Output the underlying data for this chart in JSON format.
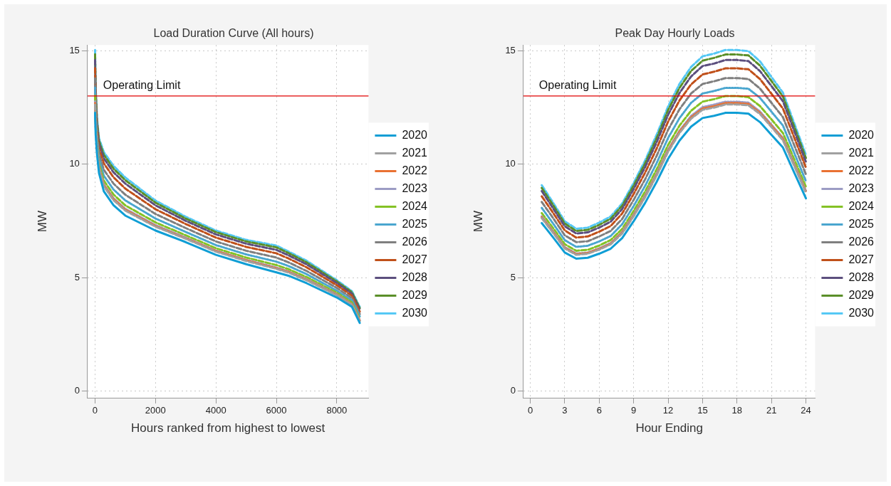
{
  "chart_data": [
    {
      "type": "line",
      "title": "Load Duration Curve (All hours)",
      "xlabel": "Hours ranked from highest to lowest",
      "ylabel": "MW",
      "x": [
        0,
        20,
        65,
        130,
        290,
        610,
        1000,
        2000,
        3000,
        4000,
        5000,
        6000,
        6400,
        7000,
        8000,
        8500,
        8760
      ],
      "xlim": [
        -250,
        9050
      ],
      "xticks": [
        0,
        2000,
        4000,
        6000,
        8000
      ],
      "ylim": [
        -0.3,
        15.25
      ],
      "yticks": [
        0,
        5,
        10,
        15
      ],
      "grid": true,
      "legend": "right",
      "marker": "none",
      "ref_lines": [
        {
          "axis": "y",
          "value": 13,
          "label": "Operating Limit",
          "color": "#e00000"
        }
      ],
      "series": [
        {
          "name": "2020",
          "color": "#0f9ed5",
          "line_style": "solid",
          "values": [
            12.26,
            11.3,
            10.43,
            9.61,
            8.8,
            8.19,
            7.73,
            7.07,
            6.56,
            6.0,
            5.59,
            5.23,
            5.08,
            4.75,
            4.12,
            3.71,
            3.0
          ]
        },
        {
          "name": "2021",
          "color": "#a0a0a0",
          "line_style": "dashed",
          "values": [
            12.62,
            11.57,
            10.63,
            9.81,
            9.02,
            8.41,
            7.95,
            7.24,
            6.71,
            6.14,
            5.73,
            5.38,
            5.22,
            4.88,
            4.22,
            3.8,
            3.09
          ]
        },
        {
          "name": "2022",
          "color": "#e97132",
          "line_style": "dotted",
          "values": [
            12.69,
            11.63,
            10.67,
            9.85,
            9.07,
            8.46,
            7.99,
            7.27,
            6.73,
            6.17,
            5.76,
            5.41,
            5.25,
            4.9,
            4.24,
            3.82,
            3.11
          ]
        },
        {
          "name": "2023",
          "color": "#9c9cc4",
          "line_style": "dotted",
          "values": [
            12.76,
            11.68,
            10.71,
            9.89,
            9.11,
            8.5,
            8.03,
            7.31,
            6.76,
            6.19,
            5.78,
            5.44,
            5.27,
            4.93,
            4.26,
            3.83,
            3.13
          ]
        },
        {
          "name": "2024",
          "color": "#84c225",
          "line_style": "dashed",
          "values": [
            13.01,
            11.87,
            10.85,
            10.02,
            9.27,
            8.66,
            8.18,
            7.43,
            6.86,
            6.29,
            5.88,
            5.55,
            5.37,
            5.02,
            4.33,
            3.9,
            3.19
          ]
        },
        {
          "name": "2025",
          "color": "#4aa6cf",
          "line_style": "dotted",
          "values": [
            13.37,
            12.14,
            11.06,
            10.22,
            9.49,
            8.88,
            8.4,
            7.6,
            7.01,
            6.43,
            6.02,
            5.7,
            5.51,
            5.15,
            4.42,
            3.99,
            3.28
          ]
        },
        {
          "name": "2026",
          "color": "#7f7f7f",
          "line_style": "dashed",
          "values": [
            13.78,
            12.46,
            11.29,
            10.45,
            9.75,
            9.14,
            8.65,
            7.8,
            7.18,
            6.59,
            6.18,
            5.88,
            5.67,
            5.29,
            4.54,
            4.09,
            3.39
          ]
        },
        {
          "name": "2027",
          "color": "#c0501a",
          "line_style": "dashed",
          "values": [
            14.23,
            12.79,
            11.54,
            10.7,
            10.03,
            9.42,
            8.92,
            8.01,
            7.36,
            6.76,
            6.35,
            6.07,
            5.84,
            5.45,
            4.66,
            4.2,
            3.5
          ]
        },
        {
          "name": "2028",
          "color": "#5c4f7e",
          "line_style": "dashed",
          "values": [
            14.59,
            13.06,
            11.75,
            10.9,
            10.25,
            9.64,
            9.14,
            8.18,
            7.5,
            6.9,
            6.49,
            6.22,
            5.98,
            5.58,
            4.76,
            4.29,
            3.59
          ]
        },
        {
          "name": "2029",
          "color": "#5a8f29",
          "line_style": "dashed",
          "values": [
            14.84,
            13.25,
            11.89,
            11.03,
            10.41,
            9.8,
            9.29,
            8.3,
            7.6,
            7.0,
            6.59,
            6.33,
            6.08,
            5.67,
            4.83,
            4.35,
            3.65
          ]
        },
        {
          "name": "2030",
          "color": "#55c8f5",
          "line_style": "dashed",
          "values": [
            15.03,
            13.4,
            12.0,
            11.14,
            10.53,
            9.92,
            9.41,
            8.39,
            7.68,
            7.07,
            6.66,
            6.41,
            6.15,
            5.74,
            4.88,
            4.4,
            3.7
          ]
        }
      ]
    },
    {
      "type": "line",
      "title": "Peak Day Hourly Loads",
      "xlabel": "Hour Ending",
      "ylabel": "MW",
      "x": [
        1,
        2,
        3,
        4,
        5,
        6,
        7,
        8,
        9,
        10,
        11,
        12,
        13,
        14,
        15,
        16,
        17,
        18,
        19,
        20,
        21,
        22,
        23,
        24
      ],
      "xlim": [
        -0.6,
        24.8
      ],
      "xticks": [
        0,
        3,
        6,
        9,
        12,
        15,
        18,
        21,
        24
      ],
      "ylim": [
        -0.3,
        15.25
      ],
      "yticks": [
        0,
        5,
        10,
        15
      ],
      "grid": true,
      "legend": "right",
      "marker": "none",
      "ref_lines": [
        {
          "axis": "y",
          "value": 13,
          "label": "Operating Limit",
          "color": "#e00000"
        }
      ],
      "series": [
        {
          "name": "2020",
          "color": "#0f9ed5",
          "line_style": "solid",
          "values": [
            7.4,
            6.76,
            6.1,
            5.83,
            5.87,
            6.05,
            6.27,
            6.74,
            7.48,
            8.29,
            9.21,
            10.23,
            11.04,
            11.65,
            12.03,
            12.13,
            12.26,
            12.26,
            12.22,
            11.85,
            11.29,
            10.73,
            9.61,
            8.49
          ]
        },
        {
          "name": "2021",
          "color": "#a0a0a0",
          "line_style": "dashed",
          "values": [
            7.62,
            6.96,
            6.28,
            6.0,
            6.05,
            6.23,
            6.46,
            6.94,
            7.7,
            8.54,
            9.49,
            10.54,
            11.37,
            12.0,
            12.39,
            12.49,
            12.63,
            12.63,
            12.59,
            12.21,
            11.63,
            11.05,
            9.9,
            8.74
          ]
        },
        {
          "name": "2022",
          "color": "#e97132",
          "line_style": "dotted",
          "values": [
            7.66,
            7.0,
            6.31,
            6.03,
            6.08,
            6.26,
            6.49,
            6.98,
            7.74,
            8.58,
            9.53,
            10.59,
            11.43,
            12.06,
            12.45,
            12.55,
            12.69,
            12.69,
            12.65,
            12.26,
            11.69,
            11.11,
            9.95,
            8.79
          ]
        },
        {
          "name": "2023",
          "color": "#9c9cc4",
          "line_style": "dotted",
          "values": [
            7.7,
            7.03,
            6.34,
            6.06,
            6.1,
            6.29,
            6.52,
            7.01,
            7.78,
            8.62,
            9.58,
            10.64,
            11.48,
            12.12,
            12.51,
            12.62,
            12.75,
            12.75,
            12.71,
            12.32,
            11.74,
            11.16,
            9.99,
            8.83
          ]
        },
        {
          "name": "2024",
          "color": "#84c225",
          "line_style": "dashed",
          "values": [
            7.84,
            7.17,
            6.47,
            6.18,
            6.22,
            6.41,
            6.65,
            7.14,
            7.93,
            8.79,
            9.76,
            10.84,
            11.7,
            12.35,
            12.75,
            12.86,
            13.0,
            13.0,
            12.95,
            12.56,
            11.97,
            11.37,
            10.19,
            9.0
          ]
        },
        {
          "name": "2025",
          "color": "#4aa6cf",
          "line_style": "dotted",
          "values": [
            8.07,
            7.37,
            6.65,
            6.35,
            6.4,
            6.59,
            6.83,
            7.35,
            8.15,
            9.04,
            10.04,
            11.15,
            12.03,
            12.7,
            13.11,
            13.22,
            13.36,
            13.36,
            13.32,
            12.92,
            12.31,
            11.7,
            10.47,
            9.25
          ]
        },
        {
          "name": "2026",
          "color": "#7f7f7f",
          "line_style": "dashed",
          "values": [
            8.33,
            7.61,
            6.86,
            6.56,
            6.6,
            6.81,
            7.05,
            7.58,
            8.42,
            9.33,
            10.36,
            11.51,
            12.42,
            13.11,
            13.53,
            13.65,
            13.79,
            13.79,
            13.75,
            13.33,
            12.7,
            12.07,
            10.81,
            9.55
          ]
        },
        {
          "name": "2027",
          "color": "#c0501a",
          "line_style": "dashed",
          "values": [
            8.58,
            7.84,
            7.08,
            6.76,
            6.81,
            7.02,
            7.27,
            7.82,
            8.68,
            9.62,
            10.68,
            11.87,
            12.81,
            13.51,
            13.95,
            14.07,
            14.22,
            14.22,
            14.18,
            13.75,
            13.1,
            12.45,
            11.15,
            9.85
          ]
        },
        {
          "name": "2028",
          "color": "#5c4f7e",
          "line_style": "dashed",
          "values": [
            8.81,
            8.04,
            7.26,
            6.94,
            6.99,
            7.2,
            7.46,
            8.02,
            8.9,
            9.87,
            10.96,
            12.17,
            13.14,
            13.86,
            14.32,
            14.43,
            14.59,
            14.59,
            14.54,
            14.1,
            13.44,
            12.77,
            11.44,
            10.1
          ]
        },
        {
          "name": "2029",
          "color": "#5a8f29",
          "line_style": "dashed",
          "values": [
            8.95,
            8.18,
            7.38,
            7.05,
            7.1,
            7.32,
            7.59,
            8.16,
            9.05,
            10.03,
            11.14,
            12.38,
            13.36,
            14.1,
            14.56,
            14.68,
            14.83,
            14.83,
            14.79,
            14.34,
            13.66,
            12.98,
            11.63,
            10.27
          ]
        },
        {
          "name": "2030",
          "color": "#55c8f5",
          "line_style": "dashed",
          "values": [
            9.07,
            8.29,
            7.48,
            7.15,
            7.2,
            7.42,
            7.69,
            8.26,
            9.17,
            10.16,
            11.29,
            12.54,
            13.54,
            14.28,
            14.75,
            14.87,
            15.03,
            15.03,
            14.98,
            14.53,
            13.84,
            13.15,
            11.78,
            10.41
          ]
        }
      ]
    }
  ]
}
